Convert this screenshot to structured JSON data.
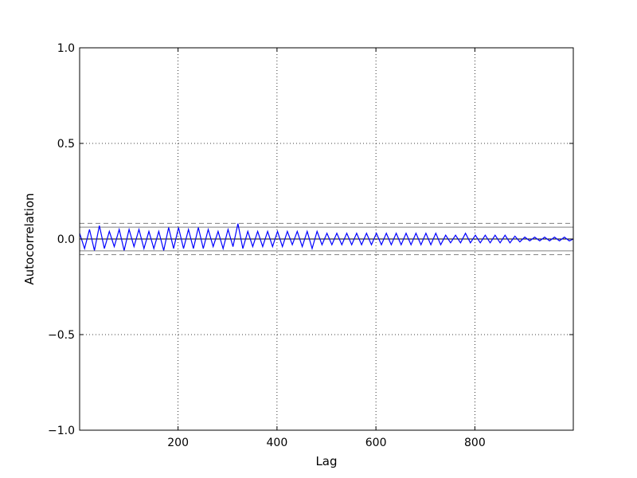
{
  "chart_data": {
    "type": "line",
    "xlabel": "Lag",
    "ylabel": "Autocorrelation",
    "xlim": [
      1,
      999
    ],
    "ylim": [
      -1.0,
      1.0
    ],
    "x_ticks": [
      200,
      400,
      600,
      800
    ],
    "x_tick_labels": [
      "200",
      "400",
      "600",
      "800"
    ],
    "y_ticks": [
      -1.0,
      -0.5,
      0.0,
      0.5,
      1.0
    ],
    "y_tick_labels": [
      "−1.0",
      "−0.5",
      "0.0",
      "0.5",
      "1.0"
    ],
    "grid": true,
    "reference_lines": [
      {
        "y": 0.0,
        "style": "solid",
        "color": "#000000"
      },
      {
        "y": 0.062,
        "style": "solid",
        "color": "#808080"
      },
      {
        "y": -0.062,
        "style": "solid",
        "color": "#808080"
      },
      {
        "y": 0.082,
        "style": "dashed",
        "color": "#808080"
      },
      {
        "y": -0.082,
        "style": "dashed",
        "color": "#808080"
      }
    ],
    "series": [
      {
        "color": "#0000ff",
        "x_start": 1,
        "x_step": 10,
        "values": [
          0.03,
          -0.05,
          0.05,
          -0.06,
          0.07,
          -0.05,
          0.04,
          -0.04,
          0.05,
          -0.06,
          0.05,
          -0.04,
          0.05,
          -0.05,
          0.04,
          -0.05,
          0.04,
          -0.06,
          0.06,
          -0.05,
          0.06,
          -0.05,
          0.05,
          -0.05,
          0.06,
          -0.05,
          0.05,
          -0.04,
          0.04,
          -0.05,
          0.05,
          -0.04,
          0.08,
          -0.05,
          0.04,
          -0.04,
          0.04,
          -0.04,
          0.04,
          -0.04,
          0.04,
          -0.04,
          0.04,
          -0.03,
          0.04,
          -0.04,
          0.04,
          -0.05,
          0.04,
          -0.03,
          0.03,
          -0.03,
          0.03,
          -0.03,
          0.03,
          -0.03,
          0.03,
          -0.03,
          0.03,
          -0.03,
          0.03,
          -0.03,
          0.03,
          -0.03,
          0.03,
          -0.03,
          0.03,
          -0.03,
          0.03,
          -0.03,
          0.03,
          -0.03,
          0.03,
          -0.03,
          0.02,
          -0.02,
          0.02,
          -0.02,
          0.03,
          -0.02,
          0.02,
          -0.02,
          0.02,
          -0.02,
          0.02,
          -0.02,
          0.02,
          -0.02,
          0.015,
          -0.015,
          0.01,
          -0.01,
          0.01,
          -0.01,
          0.01,
          -0.01,
          0.01,
          -0.01,
          0.01,
          -0.01
        ]
      }
    ]
  }
}
